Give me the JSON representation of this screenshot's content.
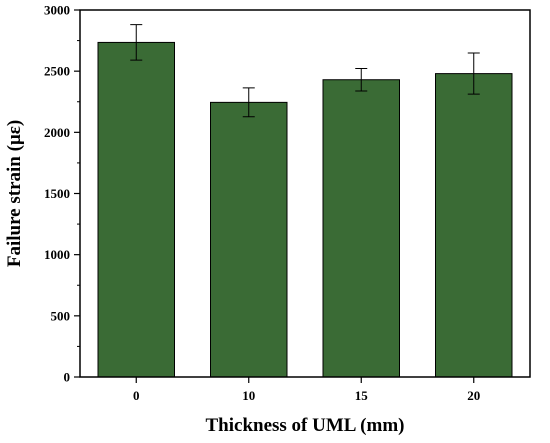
{
  "chart_data": {
    "type": "bar",
    "title": "",
    "xlabel": "Thickness of UML (mm)",
    "ylabel": "Failure strain (με)",
    "categories": [
      "0",
      "10",
      "15",
      "20"
    ],
    "values": [
      2735,
      2245,
      2430,
      2480
    ],
    "errors": [
      145,
      118,
      92,
      168
    ],
    "ylim": [
      0,
      3000
    ],
    "yticks": [
      0,
      500,
      1000,
      1500,
      2000,
      2500,
      3000
    ],
    "bar_color": "#3a6b35",
    "grid": false,
    "legend": "none"
  }
}
